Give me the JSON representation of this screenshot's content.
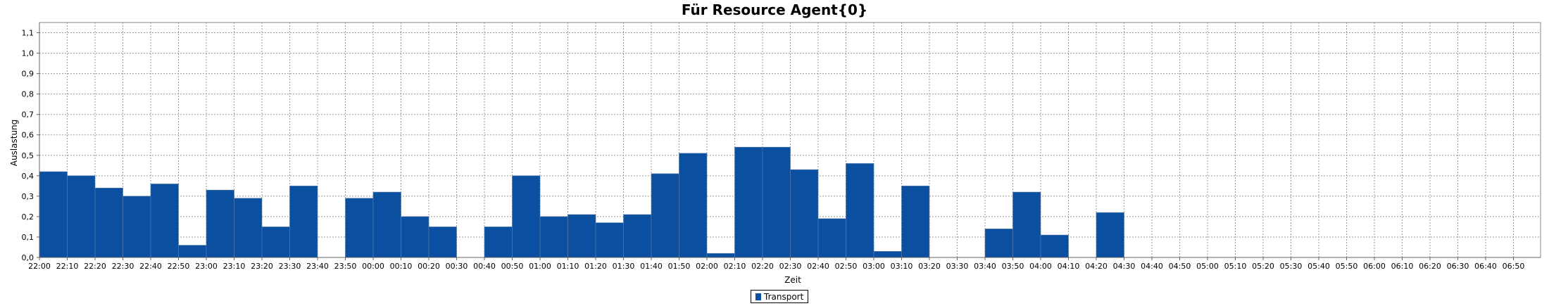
{
  "chart_data": {
    "type": "bar",
    "title": "Für Resource Agent{0}",
    "xlabel": "Zeit",
    "ylabel": "Auslastung",
    "ylim": [
      0,
      1.15
    ],
    "grid": true,
    "legend_position": "bottom",
    "series_color": "#0b4fa0",
    "ytick_labels": [
      "0,0",
      "0,1",
      "0,2",
      "0,3",
      "0,4",
      "0,5",
      "0,6",
      "0,7",
      "0,8",
      "0,9",
      "1,0",
      "1,1"
    ],
    "categories": [
      "22:00",
      "22:10",
      "22:20",
      "22:30",
      "22:40",
      "22:50",
      "23:00",
      "23:10",
      "23:20",
      "23:30",
      "23:40",
      "23:50",
      "00:00",
      "00:10",
      "00:20",
      "00:30",
      "00:40",
      "00:50",
      "01:00",
      "01:10",
      "01:20",
      "01:30",
      "01:40",
      "01:50",
      "02:00",
      "02:10",
      "02:20",
      "02:30",
      "02:40",
      "02:50",
      "03:00",
      "03:10",
      "03:20",
      "03:30",
      "03:40",
      "03:50",
      "04:00",
      "04:10",
      "04:20",
      "04:30",
      "04:40",
      "04:50",
      "05:00",
      "05:10",
      "05:20",
      "05:30",
      "05:40",
      "05:50",
      "06:00",
      "06:10",
      "06:20",
      "06:30",
      "06:40",
      "06:50"
    ],
    "series": [
      {
        "name": "Transport",
        "values": [
          0.42,
          0.4,
          0.34,
          0.3,
          0.36,
          0.06,
          0.33,
          0.29,
          0.15,
          0.35,
          0,
          0.29,
          0.32,
          0.2,
          0.15,
          0,
          0.15,
          0.4,
          0.2,
          0.21,
          0.17,
          0.21,
          0.41,
          0.51,
          0.02,
          0.54,
          0.54,
          0.43,
          0.19,
          0.46,
          0.03,
          0.35,
          0,
          0,
          0.14,
          0.32,
          0.11,
          0,
          0.22,
          0,
          0,
          0,
          0,
          0,
          0,
          0,
          0,
          0,
          0,
          0,
          0,
          0,
          0,
          0
        ]
      }
    ]
  }
}
